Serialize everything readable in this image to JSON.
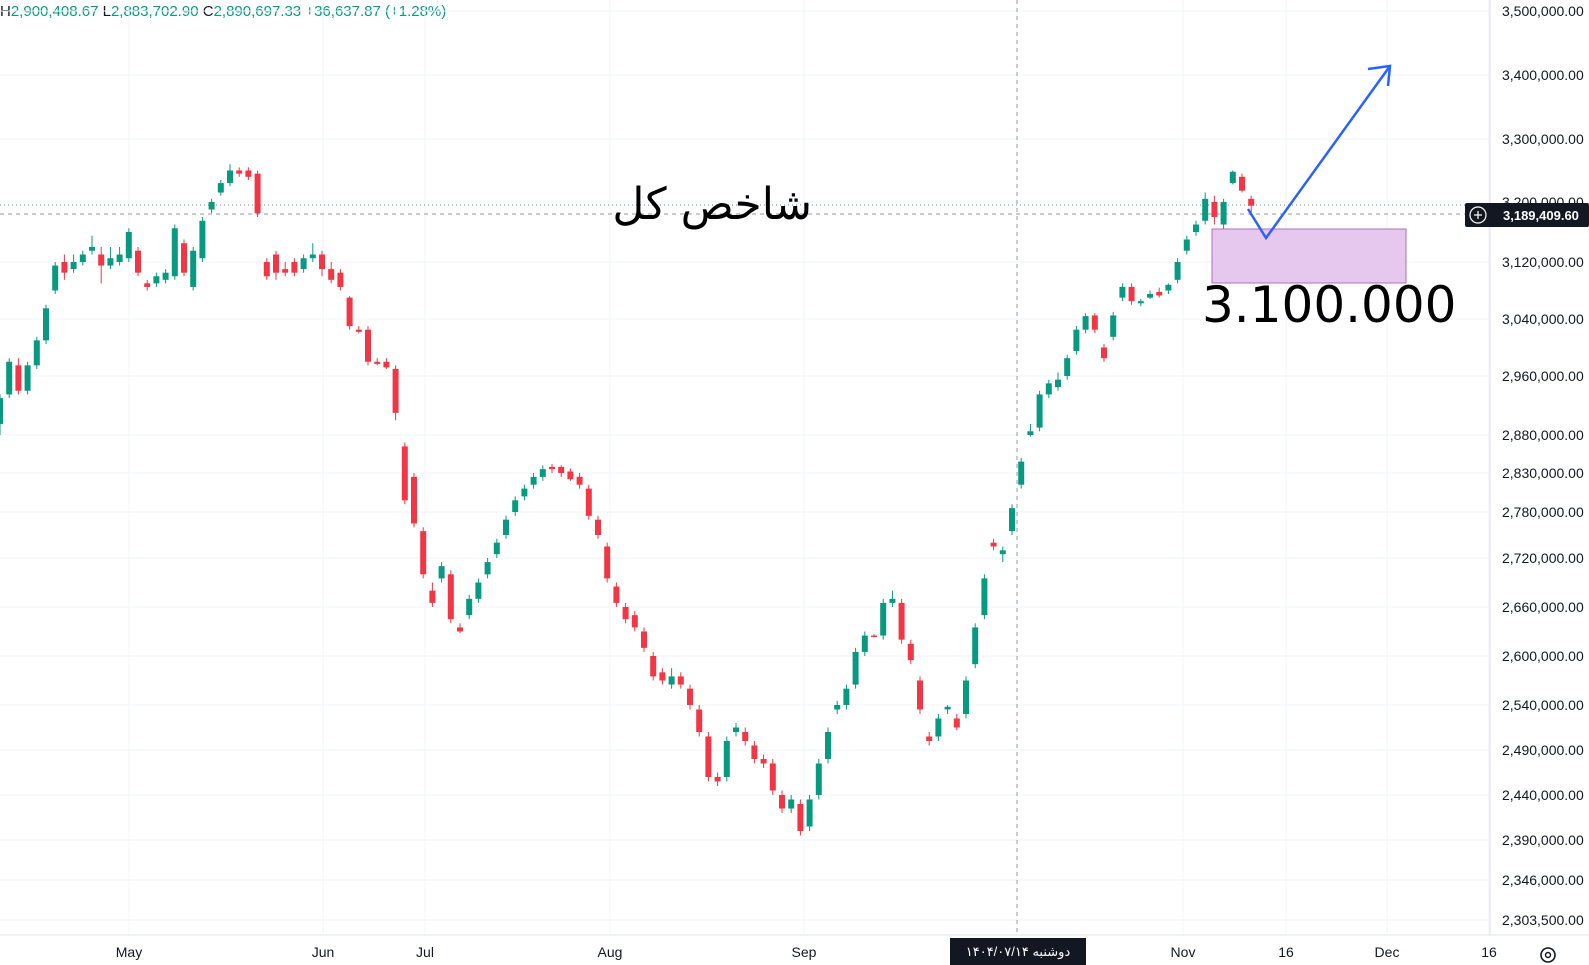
{
  "ohlc_header": {
    "h_key": "H",
    "h_val": "2,900,408.67",
    "l_key": "L",
    "l_val": "2,883,702.90",
    "c_key": "C",
    "c_val": "2,890,697.33",
    "change": "+36,637.87 (+1.28%)"
  },
  "chart_data": {
    "type": "candlestick",
    "title": "شاخص کل",
    "annotation_target": "3.100.000",
    "current_price_label": "3,189,409.60",
    "crosshair_date_label": "دوشنبه ۱۴۰۴/۰۷/۱۴",
    "y_ticks": [
      {
        "value": 3500000,
        "label": "3,500,000.00"
      },
      {
        "value": 3400000,
        "label": "3,400,000.00"
      },
      {
        "value": 3300000,
        "label": "3,300,000.00"
      },
      {
        "value": 3200000,
        "label": "3,200,000.00"
      },
      {
        "value": 3120000,
        "label": "3,120,000.00"
      },
      {
        "value": 3040000,
        "label": "3,040,000.00"
      },
      {
        "value": 2960000,
        "label": "2,960,000.00"
      },
      {
        "value": 2880000,
        "label": "2,880,000.00"
      },
      {
        "value": 2830000,
        "label": "2,830,000.00"
      },
      {
        "value": 2780000,
        "label": "2,780,000.00"
      },
      {
        "value": 2720000,
        "label": "2,720,000.00"
      },
      {
        "value": 2660000,
        "label": "2,660,000.00"
      },
      {
        "value": 2600000,
        "label": "2,600,000.00"
      },
      {
        "value": 2540000,
        "label": "2,540,000.00"
      },
      {
        "value": 2490000,
        "label": "2,490,000.00"
      },
      {
        "value": 2440000,
        "label": "2,440,000.00"
      },
      {
        "value": 2390000,
        "label": "2,390,000.00"
      },
      {
        "value": 2346000,
        "label": "2,346,000.00"
      },
      {
        "value": 2303500,
        "label": "2,303,500.00"
      }
    ],
    "x_ticks": [
      "May",
      "Jun",
      "Jul",
      "Aug",
      "Sep",
      "Nov",
      "16",
      "Dec",
      "16"
    ],
    "colors": {
      "up": "#089981",
      "down": "#f23645",
      "arrow": "#2962ff",
      "zone_fill": "#e6c8ef",
      "zone_stroke": "#b06ec2"
    },
    "candles": [
      [
        2895000,
        2935000,
        2880000,
        2930000
      ],
      [
        2935000,
        2985000,
        2930000,
        2980000
      ],
      [
        2975000,
        2985000,
        2935000,
        2940000
      ],
      [
        2940000,
        2980000,
        2935000,
        2975000
      ],
      [
        2975000,
        3015000,
        2970000,
        3010000
      ],
      [
        3010000,
        3060000,
        3005000,
        3055000
      ],
      [
        3080000,
        3120000,
        3075000,
        3115000
      ],
      [
        3120000,
        3130000,
        3095000,
        3105000
      ],
      [
        3110000,
        3130000,
        3105000,
        3120000
      ],
      [
        3120000,
        3135000,
        3115000,
        3130000
      ],
      [
        3135000,
        3155000,
        3130000,
        3140000
      ],
      [
        3130000,
        3140000,
        3090000,
        3115000
      ],
      [
        3115000,
        3140000,
        3110000,
        3125000
      ],
      [
        3120000,
        3140000,
        3115000,
        3130000
      ],
      [
        3125000,
        3165000,
        3120000,
        3160000
      ],
      [
        3135000,
        3140000,
        3100000,
        3105000
      ],
      [
        3090000,
        3095000,
        3080000,
        3085000
      ],
      [
        3090000,
        3105000,
        3085000,
        3100000
      ],
      [
        3095000,
        3110000,
        3090000,
        3105000
      ],
      [
        3100000,
        3170000,
        3095000,
        3165000
      ],
      [
        3145000,
        3150000,
        3100000,
        3105000
      ],
      [
        3085000,
        3140000,
        3080000,
        3135000
      ],
      [
        3125000,
        3180000,
        3120000,
        3175000
      ],
      [
        3190000,
        3205000,
        3185000,
        3200000
      ],
      [
        3215000,
        3235000,
        3210000,
        3230000
      ],
      [
        3230000,
        3260000,
        3225000,
        3250000
      ],
      [
        3250000,
        3255000,
        3240000,
        3245000
      ],
      [
        3250000,
        3255000,
        3235000,
        3240000
      ],
      [
        3245000,
        3250000,
        3180000,
        3185000
      ],
      [
        3120000,
        3125000,
        3095000,
        3100000
      ],
      [
        3130000,
        3135000,
        3095000,
        3105000
      ],
      [
        3110000,
        3120000,
        3100000,
        3105000
      ],
      [
        3120000,
        3125000,
        3100000,
        3105000
      ],
      [
        3110000,
        3130000,
        3105000,
        3125000
      ],
      [
        3125000,
        3145000,
        3120000,
        3130000
      ],
      [
        3130000,
        3135000,
        3100000,
        3110000
      ],
      [
        3110000,
        3120000,
        3090000,
        3095000
      ],
      [
        3105000,
        3110000,
        3080000,
        3085000
      ],
      [
        3070000,
        3072000,
        3025000,
        3030000
      ],
      [
        3025000,
        3030000,
        3020000,
        3022000
      ],
      [
        3025000,
        3030000,
        2975000,
        2980000
      ],
      [
        2980000,
        2985000,
        2975000,
        2977000
      ],
      [
        2980000,
        2985000,
        2970000,
        2972000
      ],
      [
        2970000,
        2975000,
        2900000,
        2910000
      ],
      [
        2865000,
        2870000,
        2790000,
        2795000
      ],
      [
        2825000,
        2830000,
        2760000,
        2765000
      ],
      [
        2755000,
        2760000,
        2695000,
        2700000
      ],
      [
        2680000,
        2690000,
        2660000,
        2665000
      ],
      [
        2695000,
        2715000,
        2690000,
        2710000
      ],
      [
        2700000,
        2705000,
        2640000,
        2645000
      ],
      [
        2635000,
        2640000,
        2628000,
        2630000
      ],
      [
        2650000,
        2675000,
        2645000,
        2670000
      ],
      [
        2670000,
        2695000,
        2665000,
        2690000
      ],
      [
        2700000,
        2720000,
        2695000,
        2715000
      ],
      [
        2725000,
        2745000,
        2720000,
        2740000
      ],
      [
        2750000,
        2775000,
        2745000,
        2770000
      ],
      [
        2780000,
        2800000,
        2775000,
        2795000
      ],
      [
        2800000,
        2815000,
        2795000,
        2810000
      ],
      [
        2815000,
        2830000,
        2810000,
        2825000
      ],
      [
        2825000,
        2840000,
        2820000,
        2835000
      ],
      [
        2838000,
        2842000,
        2830000,
        2835000
      ],
      [
        2838000,
        2840000,
        2825000,
        2830000
      ],
      [
        2832000,
        2836000,
        2820000,
        2822000
      ],
      [
        2825000,
        2830000,
        2810000,
        2815000
      ],
      [
        2810000,
        2815000,
        2770000,
        2775000
      ],
      [
        2770000,
        2775000,
        2745000,
        2750000
      ],
      [
        2735000,
        2740000,
        2690000,
        2695000
      ],
      [
        2685000,
        2690000,
        2660000,
        2665000
      ],
      [
        2660000,
        2665000,
        2640000,
        2645000
      ],
      [
        2650000,
        2655000,
        2630000,
        2635000
      ],
      [
        2630000,
        2635000,
        2605000,
        2610000
      ],
      [
        2600000,
        2605000,
        2570000,
        2575000
      ],
      [
        2580000,
        2585000,
        2565000,
        2570000
      ],
      [
        2565000,
        2585000,
        2560000,
        2575000
      ],
      [
        2575000,
        2580000,
        2560000,
        2565000
      ],
      [
        2560000,
        2565000,
        2535000,
        2540000
      ],
      [
        2535000,
        2540000,
        2505000,
        2510000
      ],
      [
        2505000,
        2510000,
        2455000,
        2460000
      ],
      [
        2460000,
        2465000,
        2450000,
        2455000
      ],
      [
        2460000,
        2505000,
        2455000,
        2500000
      ],
      [
        2510000,
        2520000,
        2505000,
        2515000
      ],
      [
        2510000,
        2515000,
        2495000,
        2500000
      ],
      [
        2495000,
        2500000,
        2475000,
        2480000
      ],
      [
        2480000,
        2485000,
        2470000,
        2475000
      ],
      [
        2475000,
        2480000,
        2440000,
        2445000
      ],
      [
        2440000,
        2445000,
        2420000,
        2425000
      ],
      [
        2425000,
        2440000,
        2420000,
        2435000
      ],
      [
        2430000,
        2435000,
        2395000,
        2400000
      ],
      [
        2405000,
        2440000,
        2400000,
        2435000
      ],
      [
        2440000,
        2480000,
        2435000,
        2475000
      ],
      [
        2480000,
        2515000,
        2475000,
        2510000
      ],
      [
        2535000,
        2545000,
        2530000,
        2540000
      ],
      [
        2540000,
        2565000,
        2535000,
        2560000
      ],
      [
        2565000,
        2610000,
        2560000,
        2605000
      ],
      [
        2605000,
        2630000,
        2600000,
        2625000
      ],
      [
        2625000,
        2627000,
        2623000,
        2624000
      ],
      [
        2625000,
        2670000,
        2620000,
        2665000
      ],
      [
        2665000,
        2680000,
        2660000,
        2670000
      ],
      [
        2665000,
        2670000,
        2615000,
        2620000
      ],
      [
        2615000,
        2620000,
        2590000,
        2595000
      ],
      [
        2570000,
        2575000,
        2530000,
        2535000
      ],
      [
        2505000,
        2510000,
        2495000,
        2500000
      ],
      [
        2505000,
        2530000,
        2500000,
        2525000
      ],
      [
        2535000,
        2540000,
        2530000,
        2538000
      ],
      [
        2525000,
        2530000,
        2512000,
        2515000
      ],
      [
        2530000,
        2575000,
        2525000,
        2570000
      ],
      [
        2590000,
        2640000,
        2585000,
        2635000
      ],
      [
        2650000,
        2700000,
        2645000,
        2695000
      ],
      [
        2740000,
        2745000,
        2730000,
        2735000
      ],
      [
        2725000,
        2735000,
        2715000,
        2730000
      ],
      [
        2755000,
        2790000,
        2750000,
        2785000
      ],
      [
        2815000,
        2850000,
        2810000,
        2845000
      ],
      [
        2880000,
        2895000,
        2878000,
        2885000
      ],
      [
        2890000,
        2940000,
        2885000,
        2935000
      ],
      [
        2935000,
        2955000,
        2930000,
        2950000
      ],
      [
        2945000,
        2965000,
        2940000,
        2955000
      ],
      [
        2960000,
        2990000,
        2955000,
        2985000
      ],
      [
        2995000,
        3030000,
        2990000,
        3025000
      ],
      [
        3025000,
        3048000,
        3020000,
        3044000
      ],
      [
        3045000,
        3048000,
        3020000,
        3025000
      ],
      [
        3000000,
        3005000,
        2980000,
        2985000
      ],
      [
        3015000,
        3050000,
        3010000,
        3045000
      ],
      [
        3070000,
        3090000,
        3065000,
        3085000
      ],
      [
        3085000,
        3090000,
        3060000,
        3065000
      ],
      [
        3062000,
        3068000,
        3058000,
        3065000
      ],
      [
        3070000,
        3080000,
        3068000,
        3075000
      ],
      [
        3078000,
        3084000,
        3070000,
        3073000
      ],
      [
        3080000,
        3090000,
        3075000,
        3088000
      ],
      [
        3095000,
        3125000,
        3090000,
        3120000
      ],
      [
        3135000,
        3155000,
        3130000,
        3150000
      ],
      [
        3160000,
        3175000,
        3155000,
        3170000
      ],
      [
        3175000,
        3215000,
        3170000,
        3205000
      ],
      [
        3200000,
        3210000,
        3170000,
        3180000
      ],
      [
        3170000,
        3205000,
        3160000,
        3200000
      ],
      [
        3230000,
        3250000,
        3228000,
        3248000
      ],
      [
        3240000,
        3245000,
        3215000,
        3218000
      ],
      [
        3205000,
        3210000,
        3185000,
        3195000
      ]
    ]
  }
}
